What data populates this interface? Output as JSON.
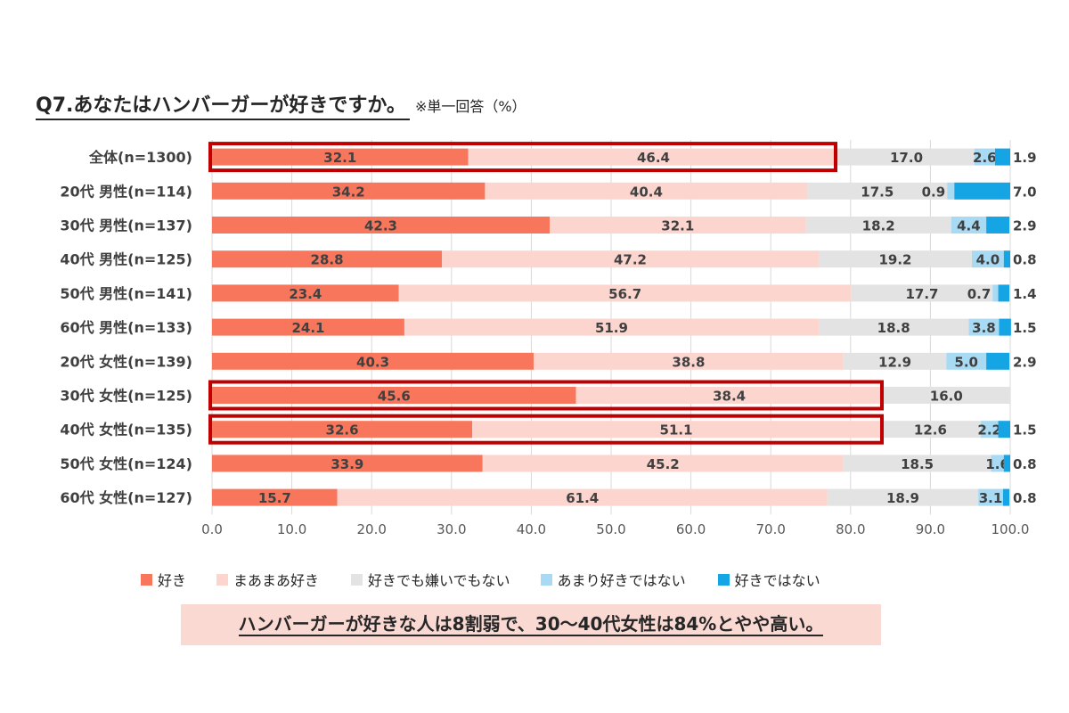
{
  "title": {
    "main": "Q7.あなたはハンバーガーが好きですか。",
    "note": "※単一回答（%）"
  },
  "conclusion": "ハンバーガーが好きな人は8割弱で、30〜40代女性は84%とやや高い。",
  "colors": {
    "like": "#f8775c",
    "somewhat_like": "#fcd5ce",
    "neutral": "#e3e3e3",
    "not_much": "#a8daf3",
    "dislike": "#16a5e4",
    "highlight": "#c00000"
  },
  "chart_data": {
    "type": "bar",
    "orientation": "horizontal",
    "stacked": true,
    "categories": [
      "全体(n=1300)",
      "20代 男性(n=114)",
      "30代 男性(n=137)",
      "40代 男性(n=125)",
      "50代 男性(n=141)",
      "60代 男性(n=133)",
      "20代 女性(n=139)",
      "30代 女性(n=125)",
      "40代 女性(n=135)",
      "50代 女性(n=124)",
      "60代 女性(n=127)"
    ],
    "series": [
      {
        "name": "好き",
        "color": "#f8775c",
        "values": [
          32.1,
          34.2,
          42.3,
          28.8,
          23.4,
          24.1,
          40.3,
          45.6,
          32.6,
          33.9,
          15.7
        ]
      },
      {
        "name": "まあまあ好き",
        "color": "#fcd5ce",
        "values": [
          46.4,
          40.4,
          32.1,
          47.2,
          56.7,
          51.9,
          38.8,
          38.4,
          51.1,
          45.2,
          61.4
        ]
      },
      {
        "name": "好きでも嫌いでもない",
        "color": "#e3e3e3",
        "values": [
          17.0,
          17.5,
          18.2,
          19.2,
          17.7,
          18.8,
          12.9,
          16.0,
          12.6,
          18.5,
          18.9
        ]
      },
      {
        "name": "あまり好きではない",
        "color": "#a8daf3",
        "values": [
          2.6,
          0.9,
          4.4,
          4.0,
          0.7,
          3.8,
          5.0,
          0,
          2.2,
          1.6,
          3.1
        ]
      },
      {
        "name": "好きではない",
        "color": "#16a5e4",
        "values": [
          1.9,
          7.0,
          2.9,
          0.8,
          1.4,
          1.5,
          2.9,
          0,
          1.5,
          0.8,
          0.8
        ]
      }
    ],
    "labels": [
      [
        "32.1",
        "46.4",
        "17.0",
        "2.6",
        "1.9"
      ],
      [
        "34.2",
        "40.4",
        "17.5",
        "0.9",
        "7.0"
      ],
      [
        "42.3",
        "32.1",
        "18.2",
        "4.4",
        "2.9"
      ],
      [
        "28.8",
        "47.2",
        "19.2",
        "4.0",
        "0.8"
      ],
      [
        "23.4",
        "56.7",
        "17.7",
        "0.7",
        "1.4"
      ],
      [
        "24.1",
        "51.9",
        "18.8",
        "3.8",
        "1.5"
      ],
      [
        "40.3",
        "38.8",
        "12.9",
        "5.0",
        "2.9"
      ],
      [
        "45.6",
        "38.4",
        "16.0",
        "",
        ""
      ],
      [
        "32.6",
        "51.1",
        "12.6",
        "2.2",
        "1.5"
      ],
      [
        "33.9",
        "45.2",
        "18.5",
        "1.6",
        "0.8"
      ],
      [
        "15.7",
        "61.4",
        "18.9",
        "3.1",
        "0.8"
      ]
    ],
    "xlim": [
      0,
      100
    ],
    "xticks": [
      "0.0",
      "10.0",
      "20.0",
      "30.0",
      "40.0",
      "50.0",
      "60.0",
      "70.0",
      "80.0",
      "90.0",
      "100.0"
    ],
    "grid": true,
    "legend": "bottom",
    "highlighted_rows": [
      0,
      7,
      8
    ]
  }
}
